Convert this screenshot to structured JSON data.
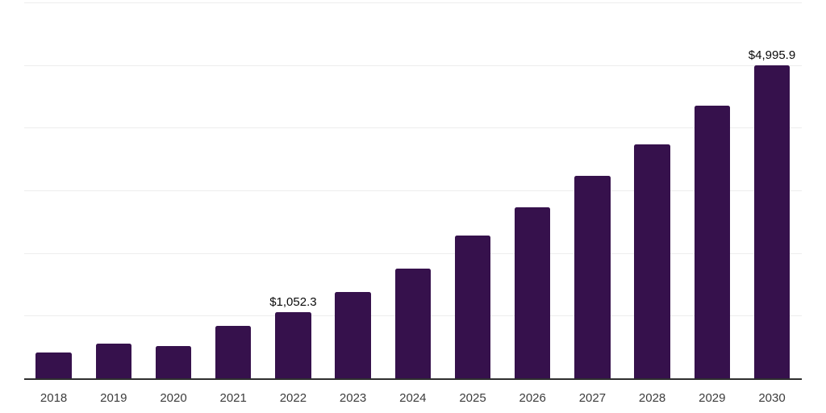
{
  "chart": {
    "background": "#FFFFFF",
    "bar_color": "#36114C",
    "gridline_color": "#EDEDED",
    "axis_color": "#2F2F2F",
    "tick_label_color": "#3C3C3C",
    "data_label_color": "#0A0A0A"
  },
  "chart_data": {
    "type": "bar",
    "title": "",
    "xlabel": "",
    "ylabel": "",
    "categories": [
      "2018",
      "2019",
      "2020",
      "2021",
      "2022",
      "2023",
      "2024",
      "2025",
      "2026",
      "2027",
      "2028",
      "2029",
      "2030"
    ],
    "values": [
      411,
      558,
      512,
      838,
      1052.3,
      1380,
      1746,
      2273,
      2725,
      3235,
      3733,
      4358,
      4995.9
    ],
    "data_labels": {
      "2022": "$1,052.3",
      "2030": "$4,995.9"
    },
    "ylim": [
      0,
      6000
    ],
    "gridline_step": 1000,
    "grid": "horizontal",
    "y_tick_labels_visible": false,
    "legend": "none"
  }
}
